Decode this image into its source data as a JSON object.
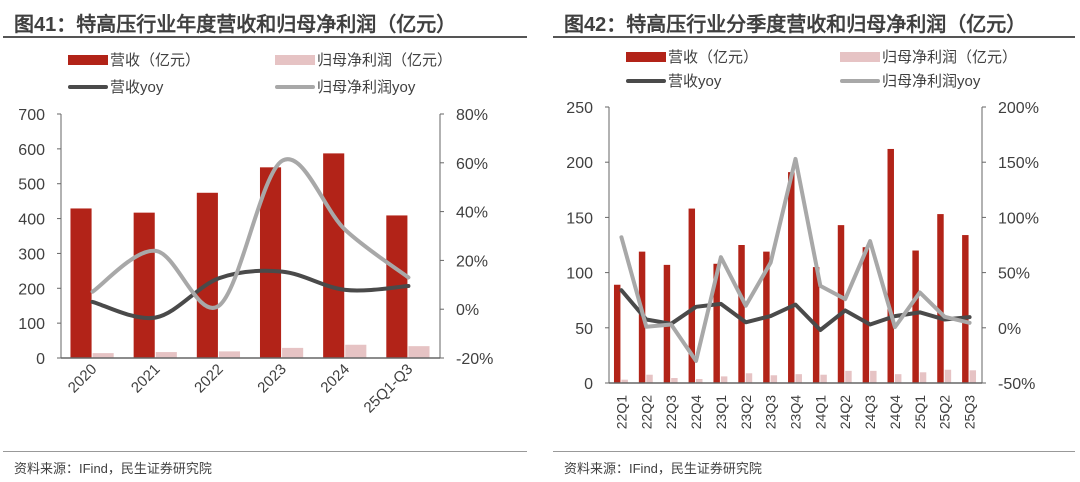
{
  "colors": {
    "revenue": "#b22318",
    "profit": "#e6c3c4",
    "revenue_yoy": "#4a4a4a",
    "profit_yoy": "#a8a8a8",
    "axis": "#808080"
  },
  "source": "资料来源：IFind，民生证券研究院",
  "chart_data": [
    {
      "type": "bar",
      "title": "图41：特高压行业年度营收和归母净利润（亿元）",
      "legend": [
        "营收（亿元）",
        "归母净利润（亿元）",
        "营收yoy",
        "归母净利润yoy"
      ],
      "legend_placement": "top",
      "categories": [
        "2020",
        "2021",
        "2022",
        "2023",
        "2024",
        "25Q1-Q3"
      ],
      "series": [
        {
          "name": "营收（亿元）",
          "kind": "bar",
          "axis": "left",
          "values": [
            429,
            417,
            474,
            547,
            587,
            409
          ]
        },
        {
          "name": "归母净利润（亿元）",
          "kind": "bar",
          "axis": "left",
          "values": [
            14,
            17,
            19,
            29,
            38,
            34
          ]
        },
        {
          "name": "营收yoy",
          "kind": "line",
          "axis": "right",
          "smooth": true,
          "values": [
            3.0,
            -3.4,
            12.7,
            15.4,
            7.9,
            9.5
          ]
        },
        {
          "name": "归母净利润yoy",
          "kind": "line",
          "axis": "right",
          "smooth": true,
          "values": [
            7.2,
            23.9,
            1.4,
            60.8,
            32.5,
            13.0
          ]
        }
      ],
      "ylim": [
        0,
        700
      ],
      "yticks": [
        "0",
        "100",
        "200",
        "300",
        "400",
        "500",
        "600",
        "700"
      ],
      "y2lim": [
        -20,
        80
      ],
      "y2ticks": [
        "-20%",
        "0%",
        "20%",
        "40%",
        "60%",
        "80%"
      ],
      "xlabel_rotation": -45
    },
    {
      "type": "bar",
      "title": "图42：特高压行业分季度营收和归母净利润（亿元）",
      "legend": [
        "营收（亿元）",
        "归母净利润（亿元）",
        "营收yoy",
        "归母净利润yoy"
      ],
      "legend_placement": "top",
      "categories": [
        "22Q1",
        "22Q2",
        "22Q3",
        "22Q4",
        "23Q1",
        "23Q2",
        "23Q3",
        "23Q4",
        "24Q1",
        "24Q2",
        "24Q3",
        "24Q4",
        "25Q1",
        "25Q2",
        "25Q3"
      ],
      "series": [
        {
          "name": "营收（亿元）",
          "kind": "bar",
          "axis": "left",
          "values": [
            89,
            119,
            107,
            158,
            108,
            125,
            119,
            191,
            105,
            143,
            123,
            212,
            120,
            153,
            134
          ]
        },
        {
          "name": "归母净利润（亿元）",
          "kind": "bar",
          "axis": "left",
          "values": [
            3,
            7.5,
            4.5,
            3.6,
            6,
            8.8,
            7,
            8,
            7.5,
            11,
            11,
            8,
            9.7,
            12,
            11.5
          ]
        },
        {
          "name": "营收yoy",
          "kind": "line",
          "axis": "right",
          "smooth": false,
          "values": [
            34,
            7.5,
            3.6,
            19,
            21.7,
            5,
            10.6,
            21,
            -2,
            15.7,
            3,
            10.6,
            14,
            7.5,
            9.7
          ]
        },
        {
          "name": "归母净利润yoy",
          "kind": "line",
          "axis": "right",
          "smooth": false,
          "values": [
            82,
            1,
            3,
            -30,
            64,
            20,
            59,
            153,
            38,
            26,
            78.5,
            0.6,
            32,
            10,
            4.5
          ]
        }
      ],
      "ylim": [
        0,
        250
      ],
      "yticks": [
        "0",
        "50",
        "100",
        "150",
        "200",
        "250"
      ],
      "y2lim": [
        -50,
        200
      ],
      "y2ticks": [
        "-50%",
        "0%",
        "50%",
        "100%",
        "150%",
        "200%"
      ],
      "xlabel_rotation": -90
    }
  ]
}
